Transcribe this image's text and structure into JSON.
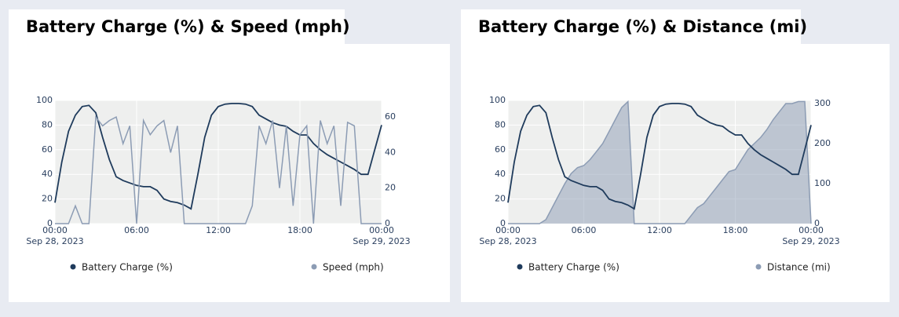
{
  "chart_data": [
    {
      "type": "line",
      "title": "Battery Charge (%) & Speed (mph)",
      "x": [
        0,
        0.5,
        1,
        1.5,
        2,
        2.5,
        3,
        3.5,
        4,
        4.5,
        5,
        5.5,
        6,
        6.5,
        7,
        7.5,
        8,
        8.5,
        9,
        9.5,
        10,
        10.5,
        11,
        11.5,
        12,
        12.5,
        13,
        13.5,
        14,
        14.5,
        15,
        15.5,
        16,
        16.5,
        17,
        17.5,
        18,
        18.5,
        19,
        19.5,
        20,
        20.5,
        21,
        21.5,
        22,
        22.5,
        23,
        23.5,
        24
      ],
      "xlim": [
        0,
        24
      ],
      "xticks": [
        {
          "value": 0,
          "label": "00:00\nSep 28, 2023"
        },
        {
          "value": 6,
          "label": "06:00"
        },
        {
          "value": 12,
          "label": "12:00"
        },
        {
          "value": 18,
          "label": "18:00"
        },
        {
          "value": 24,
          "label": "00:00\nSep 29, 2023"
        }
      ],
      "ylim": [
        0,
        100
      ],
      "yticks": [
        0,
        20,
        40,
        60,
        80,
        100
      ],
      "y2lim": [
        0,
        69.3
      ],
      "y2ticks": [
        0,
        20,
        40,
        60
      ],
      "grid": true,
      "series": [
        {
          "name": "Battery Charge (%)",
          "color": "#1f3b5c",
          "type": "line",
          "values": [
            17,
            50,
            75,
            88,
            95,
            96,
            90,
            70,
            52,
            38,
            35,
            33,
            31,
            30,
            30,
            27,
            20,
            18,
            17,
            15,
            12,
            40,
            70,
            88,
            95,
            97,
            97.5,
            97.5,
            97,
            95,
            88,
            85,
            82,
            80,
            79,
            75,
            72,
            72,
            65,
            60,
            56,
            53,
            50,
            47,
            44,
            40,
            40,
            60,
            80
          ]
        },
        {
          "name": "Speed (mph)",
          "color": "#8c9cb4",
          "type": "line",
          "axis": "y2",
          "values": [
            0,
            0,
            0,
            10,
            0,
            0,
            60,
            55,
            58,
            60,
            45,
            55,
            0,
            58,
            50,
            55,
            58,
            40,
            55,
            0,
            0,
            0,
            0,
            0,
            0,
            0,
            0,
            0,
            0,
            10,
            55,
            45,
            58,
            20,
            55,
            10,
            50,
            55,
            0,
            58,
            45,
            55,
            10,
            57,
            55,
            0,
            0,
            0,
            0
          ]
        }
      ]
    },
    {
      "type": "line",
      "title": "Battery Charge (%) & Distance (mi)",
      "x": [
        0,
        0.5,
        1,
        1.5,
        2,
        2.5,
        3,
        3.5,
        4,
        4.5,
        5,
        5.5,
        6,
        6.5,
        7,
        7.5,
        8,
        8.5,
        9,
        9.5,
        10,
        10.5,
        11,
        11.5,
        12,
        12.5,
        13,
        13.5,
        14,
        14.5,
        15,
        15.5,
        16,
        16.5,
        17,
        17.5,
        18,
        18.5,
        19,
        19.5,
        20,
        20.5,
        21,
        21.5,
        22,
        22.5,
        23,
        23.5,
        24
      ],
      "xlim": [
        0,
        24
      ],
      "xticks": [
        {
          "value": 0,
          "label": "00:00\nSep 28, 2023"
        },
        {
          "value": 6,
          "label": "06:00"
        },
        {
          "value": 12,
          "label": "12:00"
        },
        {
          "value": 18,
          "label": "18:00"
        },
        {
          "value": 24,
          "label": "00:00\nSep 29, 2023"
        }
      ],
      "ylim": [
        0,
        100
      ],
      "yticks": [
        0,
        20,
        40,
        60,
        80,
        100
      ],
      "y2lim": [
        0,
        307.8
      ],
      "y2ticks": [
        0,
        100,
        200,
        300
      ],
      "grid": true,
      "series": [
        {
          "name": "Battery Charge (%)",
          "color": "#1f3b5c",
          "type": "line",
          "values": [
            17,
            50,
            75,
            88,
            95,
            96,
            90,
            70,
            52,
            38,
            35,
            33,
            31,
            30,
            30,
            27,
            20,
            18,
            17,
            15,
            12,
            40,
            70,
            88,
            95,
            97,
            97.5,
            97.5,
            97,
            95,
            88,
            85,
            82,
            80,
            79,
            75,
            72,
            72,
            65,
            60,
            56,
            53,
            50,
            47,
            44,
            40,
            40,
            60,
            80
          ]
        },
        {
          "name": "Distance (mi)",
          "color": "#8c9cb4",
          "type": "area",
          "axis": "y2",
          "values": [
            0,
            0,
            0,
            0,
            0,
            0,
            10,
            40,
            70,
            100,
            125,
            140,
            145,
            160,
            180,
            200,
            230,
            260,
            290,
            305,
            0,
            0,
            0,
            0,
            0,
            0,
            0,
            0,
            0,
            20,
            40,
            50,
            70,
            90,
            110,
            130,
            135,
            160,
            185,
            200,
            215,
            235,
            260,
            280,
            300,
            300,
            305,
            305,
            0
          ]
        }
      ]
    }
  ]
}
